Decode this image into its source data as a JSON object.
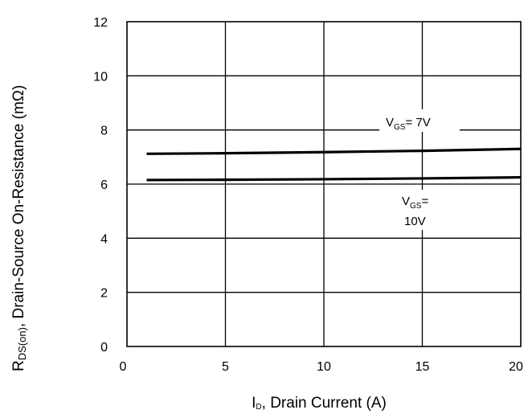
{
  "chart_data": {
    "type": "line",
    "title": "",
    "xlabel": {
      "main": "I",
      "sub": "D",
      "rest": ", Drain Current (A)"
    },
    "ylabel": {
      "main": "R",
      "sub": "DS(on)",
      "rest": ", Drain-Source On-Resistance (mΩ)"
    },
    "xlim": [
      0,
      20
    ],
    "ylim": [
      0,
      12
    ],
    "xticks": [
      0,
      5,
      10,
      15,
      20
    ],
    "yticks": [
      0,
      2,
      4,
      6,
      8,
      10,
      12
    ],
    "grid": true,
    "series": [
      {
        "label_main": "V",
        "label_sub": "GS",
        "label_rest": "= 7V",
        "label_line2": "",
        "x": [
          1,
          5,
          10,
          15,
          20
        ],
        "y": [
          7.12,
          7.14,
          7.18,
          7.23,
          7.3
        ]
      },
      {
        "label_main": "V",
        "label_sub": "GS",
        "label_rest": "=",
        "label_line2": "10V",
        "x": [
          1,
          5,
          10,
          15,
          20
        ],
        "y": [
          6.15,
          6.16,
          6.18,
          6.21,
          6.25
        ]
      }
    ]
  }
}
